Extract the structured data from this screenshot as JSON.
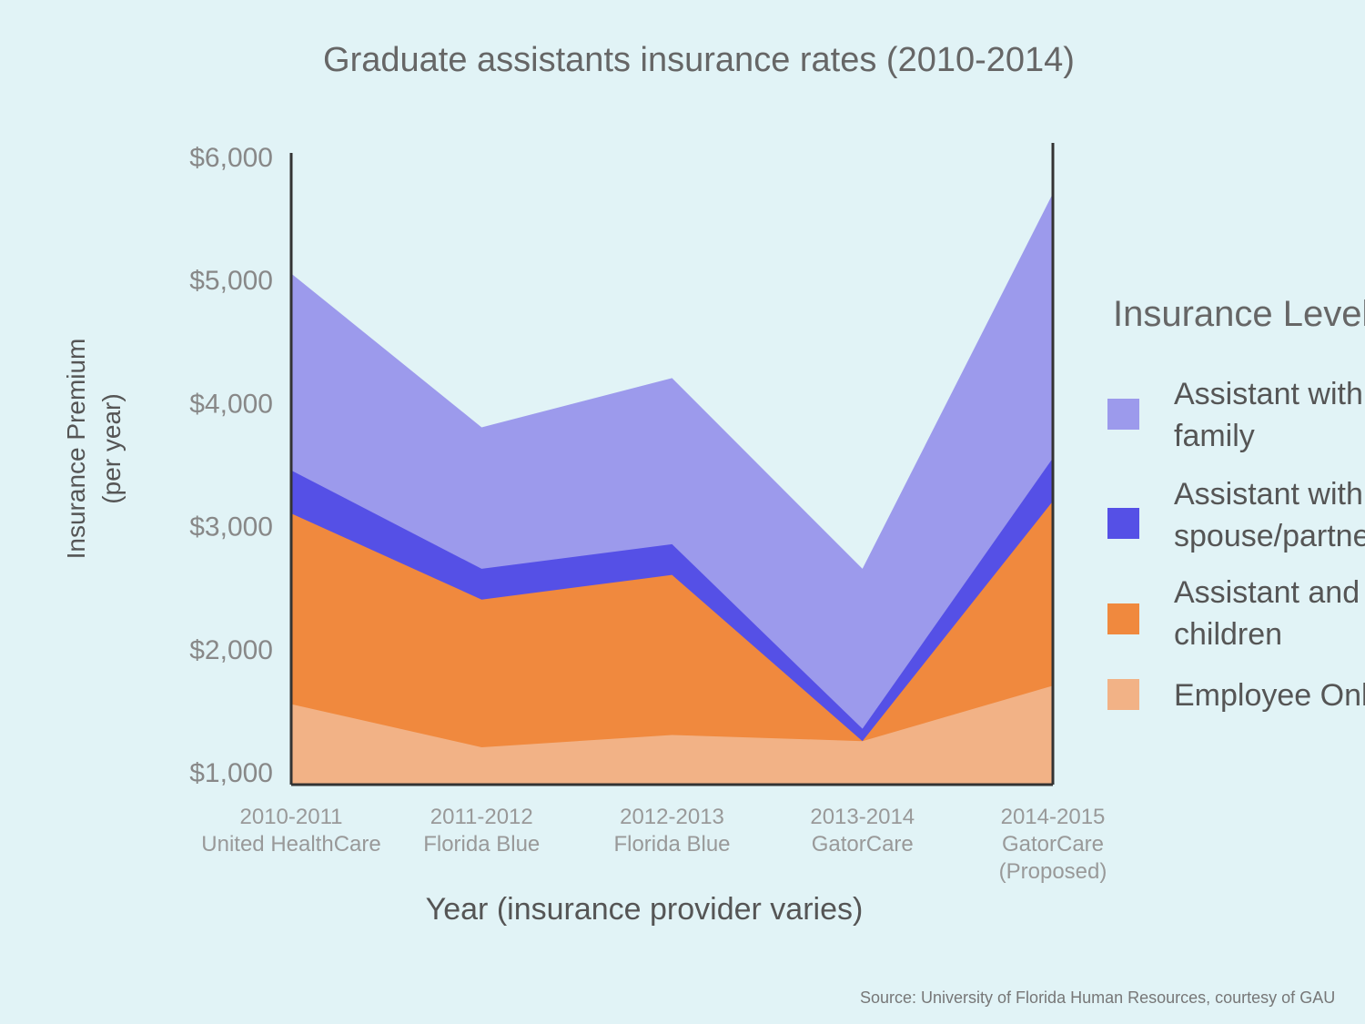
{
  "chart_data": {
    "type": "area",
    "stacked": true,
    "title": "Graduate assistants insurance rates (2010-2014)",
    "xlabel": "Year (insurance provider varies)",
    "ylabel": "Insurance Premium",
    "ylabel_sub": "(per year)",
    "ylim": [
      1000,
      6000
    ],
    "yticks": [
      "$1,000",
      "$2,000",
      "$3,000",
      "$4,000",
      "$5,000",
      "$6,000"
    ],
    "categories": [
      [
        "2010-2011",
        "United HealthCare"
      ],
      [
        "2011-2012",
        "Florida Blue"
      ],
      [
        "2012-2013",
        "Florida Blue"
      ],
      [
        "2013-2014",
        "GatorCare"
      ],
      [
        "2014-2015",
        "GatorCare",
        "(Proposed)"
      ]
    ],
    "series": [
      {
        "name": "Employee Only",
        "color": "#f2b286",
        "values": [
          1550,
          1200,
          1300,
          1250,
          1700
        ]
      },
      {
        "name": "Assistant and children",
        "color": "#f0893e",
        "values": [
          3100,
          2400,
          2600,
          1250,
          3200
        ]
      },
      {
        "name": "Assistant with spouse/partner",
        "color": "#5550e6",
        "values": [
          3450,
          2650,
          2850,
          1350,
          3550
        ]
      },
      {
        "name": "Assistant with family",
        "color": "#9c9aec",
        "values": [
          5050,
          3800,
          4200,
          2650,
          5700
        ]
      }
    ],
    "legend": {
      "title": "Insurance Level",
      "placement": "right",
      "entries": [
        {
          "lines": [
            "Assistant with",
            "family"
          ],
          "color": "#9c9aec"
        },
        {
          "lines": [
            "Assistant with",
            "spouse/partner"
          ],
          "color": "#5550e6"
        },
        {
          "lines": [
            "Assistant and",
            "children"
          ],
          "color": "#f0893e"
        },
        {
          "lines": [
            "Employee Only"
          ],
          "color": "#f2b286"
        }
      ]
    },
    "source": "Source: University of Florida Human Resources, courtesy of GAU"
  }
}
